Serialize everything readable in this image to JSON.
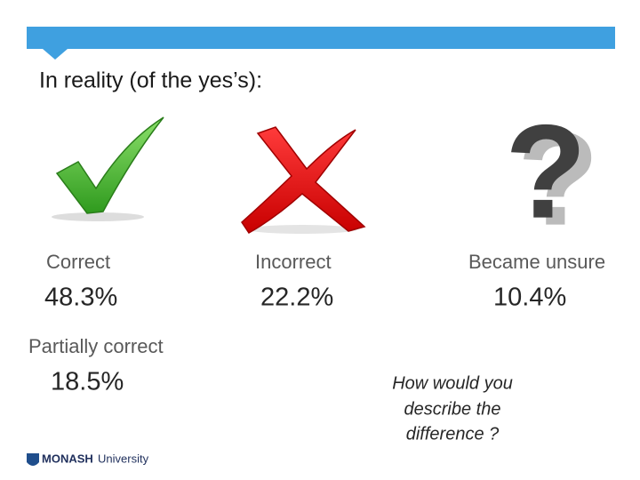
{
  "title": "In reality (of the yes’s):",
  "items": [
    {
      "label": "Correct",
      "value": "48.3%"
    },
    {
      "label": "Incorrect",
      "value": "22.2%"
    },
    {
      "label": "Became unsure",
      "value": "10.4%"
    },
    {
      "label": "Partially correct",
      "value": "18.5%"
    }
  ],
  "question": [
    "How would you",
    "describe the",
    "difference ?"
  ],
  "logo": {
    "name": "MONASH",
    "suffix": "University"
  }
}
